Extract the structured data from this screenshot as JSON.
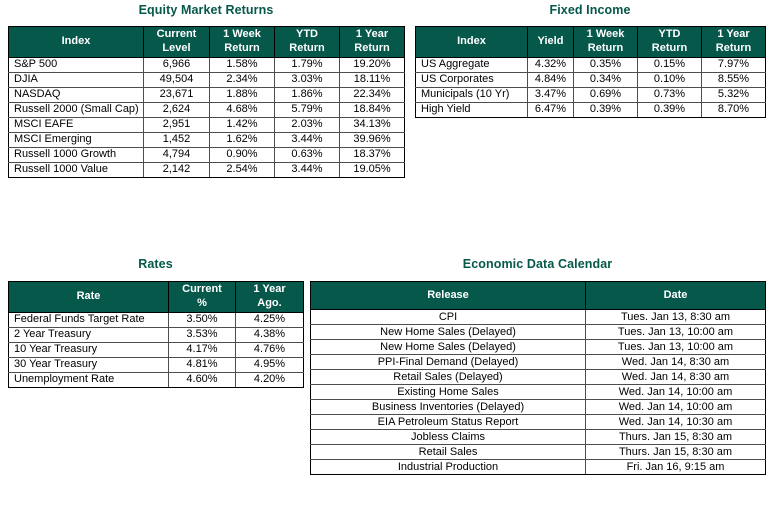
{
  "theme": {
    "header_bg": "#06584a",
    "header_text": "#ffffff",
    "title_color": "#06584a",
    "border_color": "#000000"
  },
  "equity_table": {
    "title": "Equity Market Returns",
    "columns": [
      "Index",
      "Current\nLevel",
      "1 Week\nReturn",
      "YTD\nReturn",
      "1 Year\nReturn"
    ],
    "rows": [
      [
        "S&P 500",
        "6,966",
        "1.58%",
        "1.79%",
        "19.20%"
      ],
      [
        "DJIA",
        "49,504",
        "2.34%",
        "3.03%",
        "18.11%"
      ],
      [
        "NASDAQ",
        "23,671",
        "1.88%",
        "1.86%",
        "22.34%"
      ],
      [
        "Russell 2000 (Small Cap)",
        "2,624",
        "4.68%",
        "5.79%",
        "18.84%"
      ],
      [
        "MSCI EAFE",
        "2,951",
        "1.42%",
        "2.03%",
        "34.13%"
      ],
      [
        "MSCI Emerging",
        "1,452",
        "1.62%",
        "3.44%",
        "39.96%"
      ],
      [
        "Russell 1000 Growth",
        "4,794",
        "0.90%",
        "0.63%",
        "18.37%"
      ],
      [
        "Russell 1000 Value",
        "2,142",
        "2.54%",
        "3.44%",
        "19.05%"
      ]
    ]
  },
  "fixed_income_table": {
    "title": "Fixed Income",
    "columns": [
      "Index",
      "Yield",
      "1 Week\nReturn",
      "YTD\nReturn",
      "1 Year\nReturn"
    ],
    "rows": [
      [
        "US Aggregate",
        "4.32%",
        "0.35%",
        "0.15%",
        "7.97%"
      ],
      [
        "US Corporates",
        "4.84%",
        "0.34%",
        "0.10%",
        "8.55%"
      ],
      [
        "Municipals (10 Yr)",
        "3.47%",
        "0.69%",
        "0.73%",
        "5.32%"
      ],
      [
        "High Yield",
        "6.47%",
        "0.39%",
        "0.39%",
        "8.70%"
      ]
    ]
  },
  "rates_table": {
    "title": "Rates",
    "columns": [
      "Rate",
      "Current\n%",
      "1 Year\nAgo."
    ],
    "rows": [
      [
        "Federal Funds Target Rate",
        "3.50%",
        "4.25%"
      ],
      [
        "2 Year Treasury",
        "3.53%",
        "4.38%"
      ],
      [
        "10 Year Treasury",
        "4.17%",
        "4.76%"
      ],
      [
        "30 Year Treasury",
        "4.81%",
        "4.95%"
      ],
      [
        "Unemployment Rate",
        "4.60%",
        "4.20%"
      ]
    ]
  },
  "calendar_table": {
    "title": "Economic Data Calendar",
    "columns": [
      "Release",
      "Date"
    ],
    "rows": [
      [
        "CPI",
        "Tues. Jan 13, 8:30 am"
      ],
      [
        "New Home Sales (Delayed)",
        "Tues. Jan 13, 10:00 am"
      ],
      [
        "New Home Sales (Delayed)",
        "Tues. Jan 13, 10:00 am"
      ],
      [
        "PPI-Final Demand (Delayed)",
        "Wed. Jan 14, 8:30 am"
      ],
      [
        "Retail Sales (Delayed)",
        "Wed. Jan 14, 8:30 am"
      ],
      [
        "Existing Home Sales",
        "Wed. Jan 14, 10:00 am"
      ],
      [
        "Business Inventories (Delayed)",
        "Wed. Jan 14, 10:00 am"
      ],
      [
        "EIA Petroleum Status Report",
        "Wed. Jan 14, 10:30 am"
      ],
      [
        "Jobless Claims",
        "Thurs. Jan 15, 8:30 am"
      ],
      [
        "Retail Sales",
        "Thurs. Jan 15, 8:30 am"
      ],
      [
        "Industrial Production",
        "Fri. Jan 16, 9:15 am"
      ]
    ]
  }
}
